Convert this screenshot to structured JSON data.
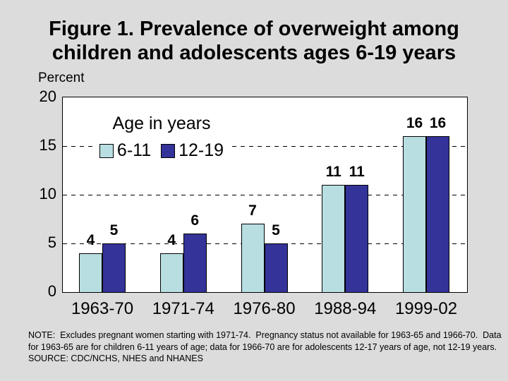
{
  "slide": {
    "background_color": "#DCDCDC",
    "title_line1": "Figure 1. Prevalence of overweight among",
    "title_line2": "children and adolescents ages 6-19 years"
  },
  "chart_data": {
    "type": "bar",
    "title": "Figure 1. Prevalence of overweight among children and adolescents ages 6-19 years",
    "ylabel": "Percent",
    "ylim": [
      0,
      20
    ],
    "yticks": [
      0,
      5,
      10,
      15,
      20
    ],
    "gridlines_y": [
      5,
      10,
      15
    ],
    "grid_style": "dashed",
    "plot_background": "#FFFFFF",
    "categories": [
      "1963-70",
      "1971-74",
      "1976-80",
      "1988-94",
      "1999-02"
    ],
    "legend_title": "Age in years",
    "legend_position": "top-left-inside",
    "series": [
      {
        "name": "6-11",
        "color": "#B8DEE2",
        "values": [
          4,
          4,
          7,
          11,
          16
        ]
      },
      {
        "name": "12-19",
        "color": "#333399",
        "values": [
          5,
          6,
          5,
          11,
          16
        ]
      }
    ]
  },
  "note": {
    "line1": "NOTE:  Excludes pregnant women starting with 1971-74.  Pregnancy status not available for 1963-65 and 1966-70.  Data",
    "line2": "for 1963-65 are for children 6-11 years of age; data for 1966-70 are for adolescents 12-17 years of age, not 12-19 years.",
    "line3": "SOURCE: CDC/NCHS, NHES and NHANES"
  }
}
